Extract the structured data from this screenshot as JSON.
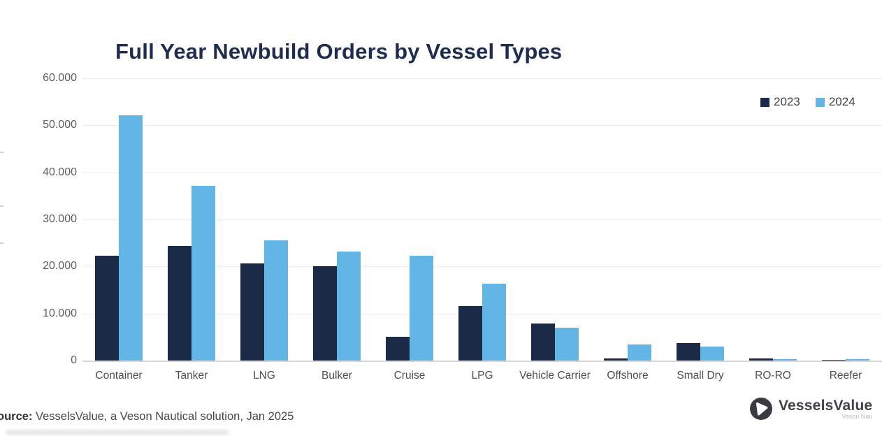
{
  "title": "Full Year Newbuild Orders by Vessel Types",
  "legend": {
    "items": [
      {
        "label": "2023",
        "color": "#1b2a47"
      },
      {
        "label": "2024",
        "color": "#63b5e5"
      }
    ]
  },
  "source": {
    "prefix_bold": "ource:",
    "text": " VesselsValue, a Veson Nautical solution, Jan 2025"
  },
  "logo": {
    "brand": "VesselsValue",
    "subtext": "Veson Nau"
  },
  "colors": {
    "series_2023": "#1b2a47",
    "series_2024": "#63b5e5",
    "title_navy": "#1e2c4f",
    "gridline": "#ececee",
    "axis_line": "#d8d9dc",
    "tick_text": "#5b6067",
    "category_text": "#4b5058"
  },
  "chart_data": {
    "type": "bar",
    "title": "Full Year Newbuild Orders by Vessel Types",
    "categories": [
      "Container",
      "Tanker",
      "LNG",
      "Bulker",
      "Cruise",
      "LPG",
      "Vehicle Carrier",
      "Offshore",
      "Small Dry",
      "RO-RO",
      "Reefer"
    ],
    "series": [
      {
        "name": "2023",
        "color": "#1b2a47",
        "values": [
          22300,
          24300,
          20700,
          20000,
          5000,
          11600,
          7800,
          500,
          3700,
          400,
          100
        ]
      },
      {
        "name": "2024",
        "color": "#63b5e5",
        "values": [
          52200,
          37100,
          25500,
          23200,
          22300,
          16300,
          7000,
          3400,
          2900,
          300,
          300
        ]
      }
    ],
    "xlabel": "",
    "ylabel": "",
    "ylim": [
      0,
      60000
    ],
    "ytick_values": [
      60000,
      50000,
      40000,
      30000,
      20000,
      10000,
      0
    ],
    "ytick_labels": [
      "60.000",
      "50.000",
      "40.000",
      "30.000",
      "20.000",
      "10.000",
      "0"
    ],
    "grid": true,
    "legend_position": "top-right"
  }
}
